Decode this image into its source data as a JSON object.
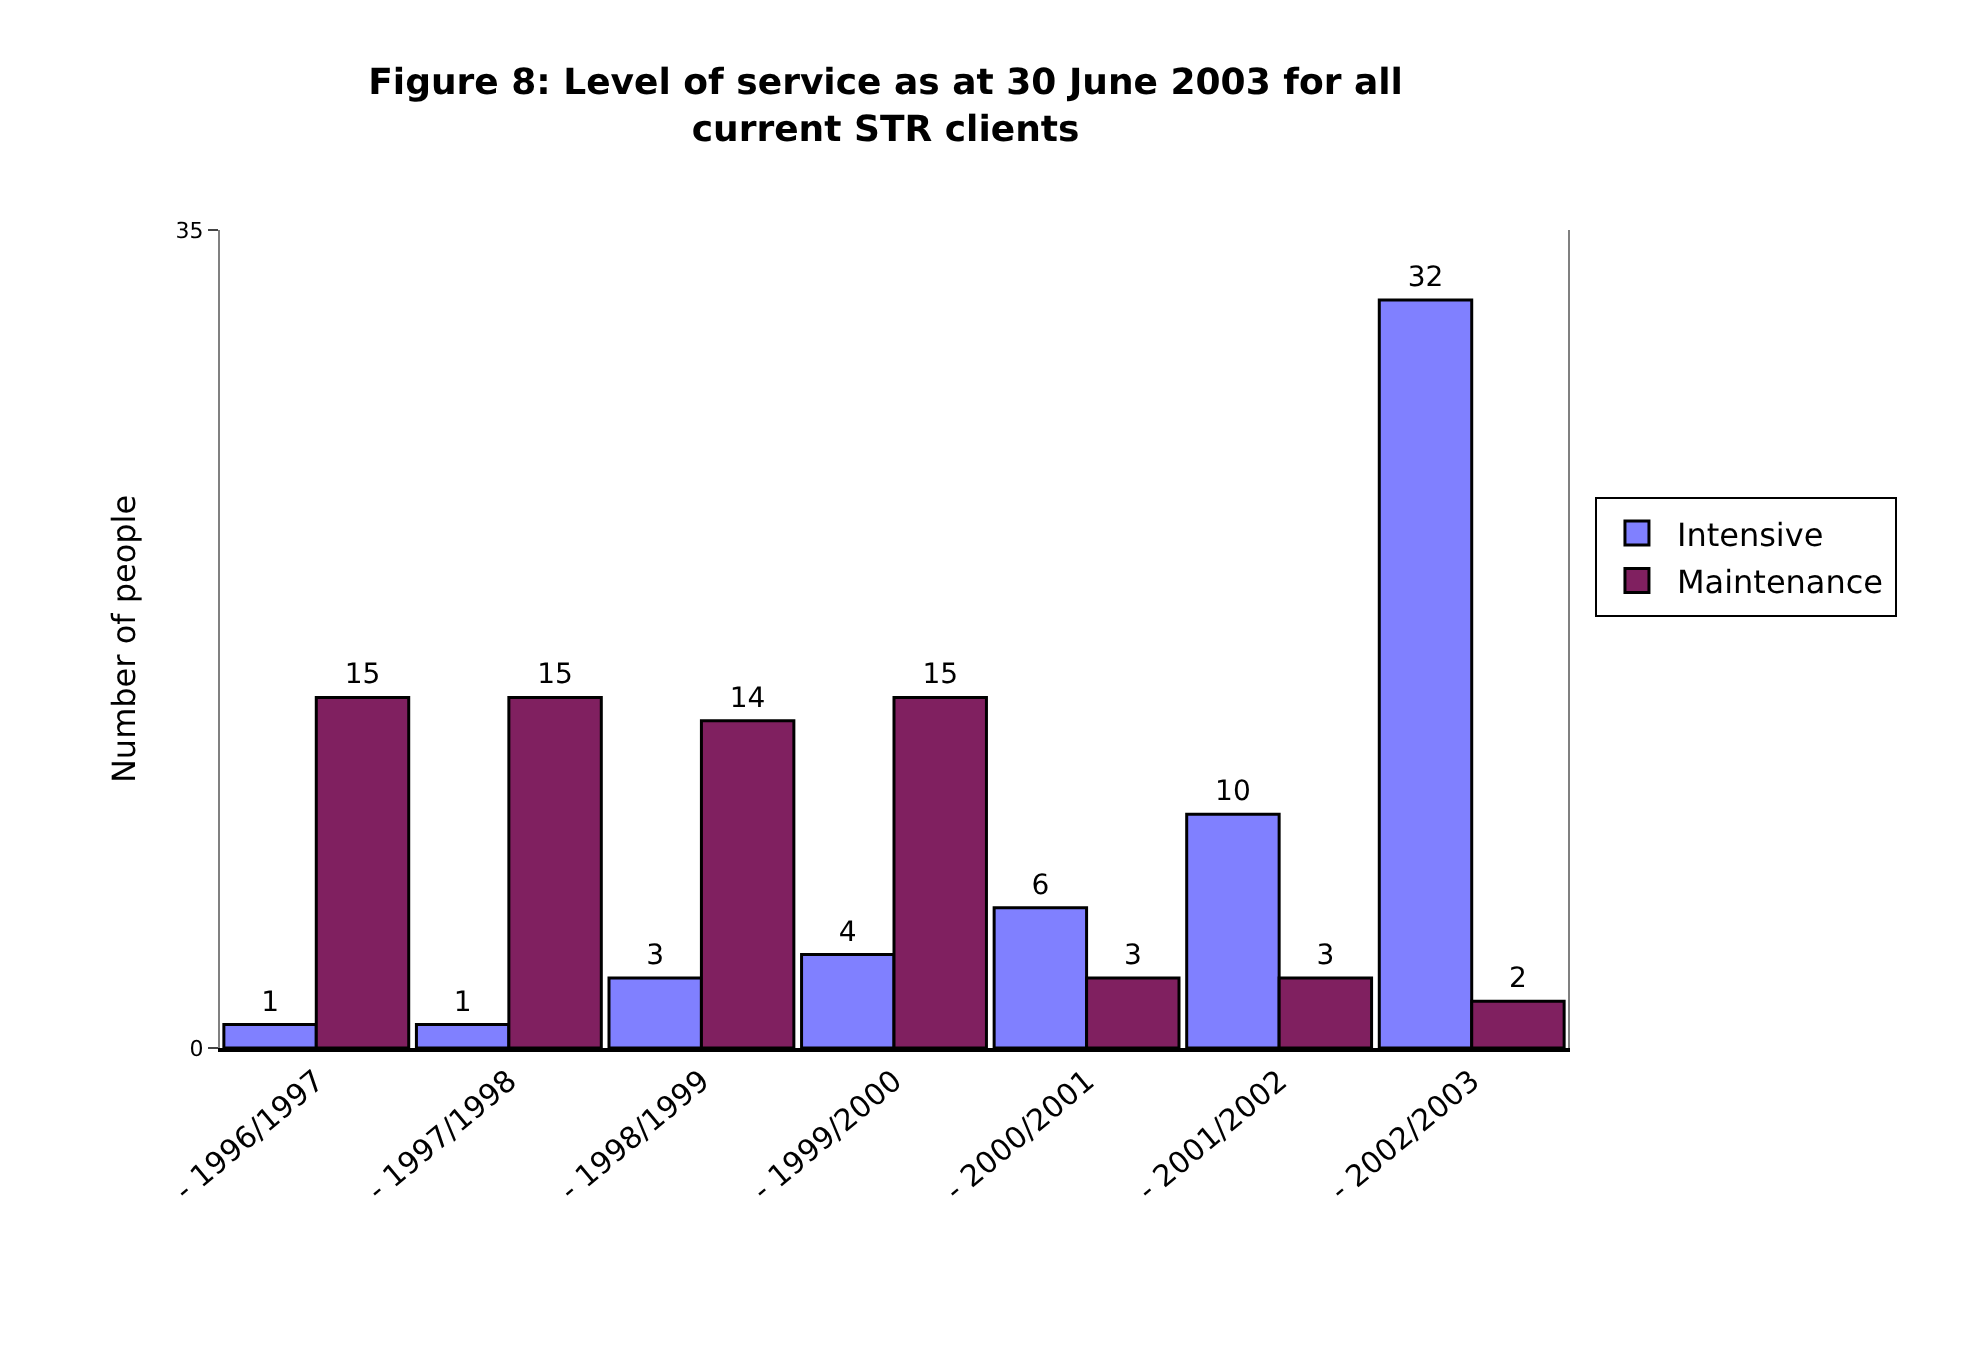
{
  "chart_data": {
    "type": "bar",
    "title": "Figure 8: Level of service as at 30 June 2003 for all current STR clients",
    "ylabel": "Number of people",
    "categories": [
      "- 1996/1997",
      "- 1997/1998",
      "- 1998/1999",
      "- 1999/2000",
      "- 2000/2001",
      "- 2001/2002",
      "- 2002/2003"
    ],
    "series": [
      {
        "name": "Intensive",
        "color": "#8080ff",
        "values": [
          1,
          1,
          3,
          4,
          6,
          10,
          32
        ]
      },
      {
        "name": "Maintenance",
        "color": "#802060",
        "values": [
          15,
          15,
          14,
          15,
          3,
          3,
          2
        ]
      }
    ],
    "ylim": [
      0,
      35
    ],
    "yticks": [
      0,
      35
    ],
    "legend": "right",
    "data_labels": true
  }
}
